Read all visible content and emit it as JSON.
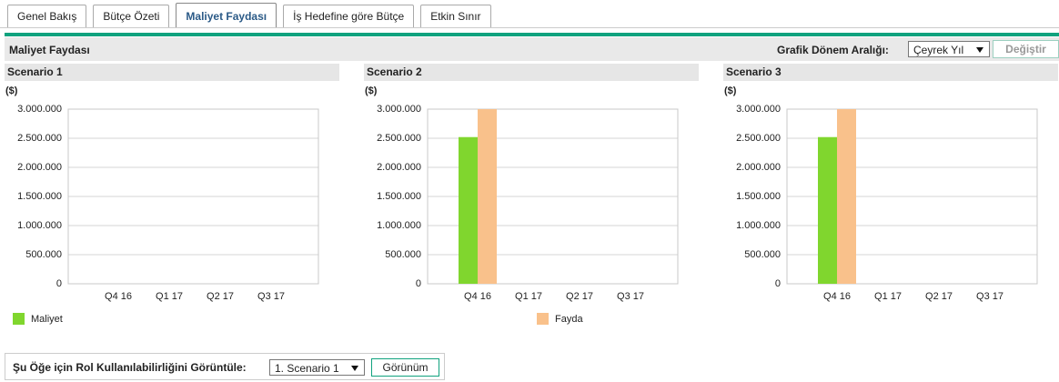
{
  "tabs": [
    "Genel Bakış",
    "Bütçe Özeti",
    "Maliyet Faydası",
    "İş Hedefine göre Bütçe",
    "Etkin Sınır"
  ],
  "active_tab": 2,
  "panel": {
    "title": "Maliyet Faydası",
    "period_label": "Grafik Dönem Aralığı:",
    "period_value": "Çeyrek Yıl",
    "change_button": "Değiştir"
  },
  "chart_data": [
    {
      "type": "bar",
      "title": "Scenario 1",
      "y_label": "($)",
      "categories": [
        "Q4 16",
        "Q1 17",
        "Q2 17",
        "Q3 17"
      ],
      "series": [
        {
          "name": "Maliyet",
          "color": "#80d62e",
          "values": [
            0,
            0,
            0,
            0
          ]
        },
        {
          "name": "Fayda",
          "color": "#f9c18b",
          "values": [
            0,
            0,
            0,
            0
          ]
        }
      ],
      "ylim": [
        0,
        3000000
      ],
      "yticks": [
        0,
        {
          "value": 500000,
          "label": "500.000"
        },
        {
          "value": 1000000,
          "label": "1.000.000"
        },
        {
          "value": 1500000,
          "label": "1.500.000"
        },
        {
          "value": 2000000,
          "label": "2.000.000"
        },
        {
          "value": 2500000,
          "label": "2.500.000"
        },
        {
          "value": 3000000,
          "label": "3.000.000"
        }
      ],
      "grid": true
    },
    {
      "type": "bar",
      "title": "Scenario 2",
      "y_label": "($)",
      "categories": [
        "Q4 16",
        "Q1 17",
        "Q2 17",
        "Q3 17"
      ],
      "series": [
        {
          "color": "#80d62e",
          "values": [
            2520000,
            0,
            0,
            0
          ]
        },
        {
          "color": "#f9c18b",
          "values": [
            3100000,
            0,
            0,
            0
          ]
        }
      ],
      "ylim": [
        0,
        3000000
      ],
      "yticks": [
        0,
        {
          "value": 500000,
          "label": "500.000"
        },
        {
          "value": 1000000,
          "label": "1.000.000"
        },
        {
          "value": 1500000,
          "label": "1.500.000"
        },
        {
          "value": 2000000,
          "label": "2.000.000"
        },
        {
          "value": 2500000,
          "label": "2.500.000"
        },
        {
          "value": 3000000,
          "label": "3.000.000"
        }
      ],
      "grid": true
    },
    {
      "type": "bar",
      "title": "Scenario 3",
      "y_label": "($)",
      "categories": [
        "Q4 16",
        "Q1 17",
        "Q2 17",
        "Q3 17"
      ],
      "series": [
        {
          "color": "#80d62e",
          "values": [
            2520000,
            0,
            0,
            0
          ]
        },
        {
          "color": "#f9c18b",
          "values": [
            3100000,
            0,
            0,
            0
          ]
        }
      ],
      "ylim": [
        0,
        3000000
      ],
      "yticks": [
        0,
        {
          "value": 500000,
          "label": "500.000"
        },
        {
          "value": 1000000,
          "label": "1.000.000"
        },
        {
          "value": 1500000,
          "label": "1.500.000"
        },
        {
          "value": 2000000,
          "label": "2.000.000"
        },
        {
          "value": 2500000,
          "label": "2.500.000"
        },
        {
          "value": 3000000,
          "label": "3.000.000"
        }
      ],
      "grid": true
    }
  ],
  "footer": {
    "label": "Şu Öğe için Rol Kullanılabilirliğini Görüntüle:",
    "select_value": "1. Scenario 1",
    "button": "Görünüm"
  }
}
